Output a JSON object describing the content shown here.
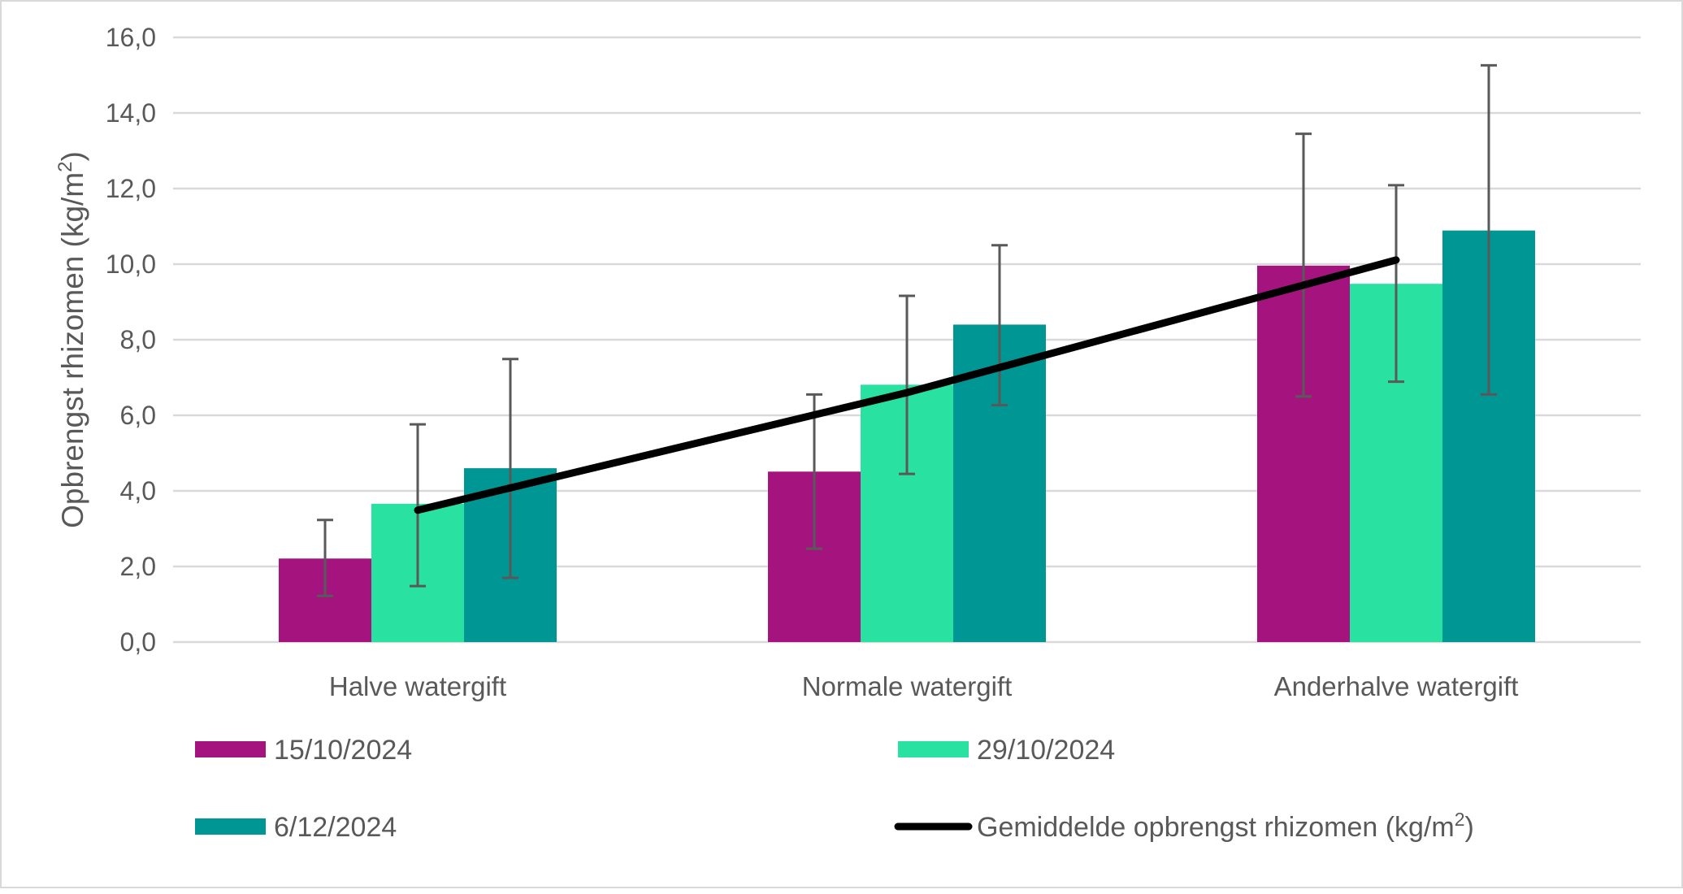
{
  "chart_data": {
    "type": "bar",
    "title": "",
    "xlabel": "",
    "ylabel": "Opbrengst rhizomen (kg/m²)",
    "ylabel_main": "Opbrengst rhizomen (kg/m",
    "ylabel_sup": "2",
    "ylabel_end": ")",
    "ylim": [
      0,
      16
    ],
    "yticks": [
      0,
      2,
      4,
      6,
      8,
      10,
      12,
      14,
      16
    ],
    "ytick_labels": [
      "0,0",
      "2,0",
      "4,0",
      "6,0",
      "8,0",
      "10,0",
      "12,0",
      "14,0",
      "16,0"
    ],
    "grid": true,
    "legend_position": "bottom",
    "categories": [
      "Halve watergift",
      "Normale watergift",
      "Anderhalve watergift"
    ],
    "series": [
      {
        "name": "15/10/2024",
        "type": "bar",
        "color": "#A5147E",
        "values": [
          2.21,
          4.51,
          9.96
        ],
        "error_low": [
          1.22,
          2.47,
          6.5
        ],
        "error_high": [
          3.23,
          6.55,
          13.45
        ]
      },
      {
        "name": "29/10/2024",
        "type": "bar",
        "color": "#29E2A2",
        "values": [
          3.66,
          6.81,
          9.48
        ],
        "error_low": [
          1.48,
          4.45,
          6.89
        ],
        "error_high": [
          5.76,
          9.16,
          12.09
        ]
      },
      {
        "name": "6/12/2024",
        "type": "bar",
        "color": "#009694",
        "values": [
          4.6,
          8.4,
          10.89
        ],
        "error_low": [
          1.7,
          6.27,
          6.55
        ],
        "error_high": [
          7.49,
          10.5,
          15.26
        ]
      },
      {
        "name": "Gemiddelde opbrengst rhizomen (kg/m²)",
        "legend_main": "Gemiddelde opbrengst rhizomen (kg/m",
        "legend_sup": "2",
        "legend_end": ")",
        "type": "line",
        "color": "#000000",
        "values": [
          3.49,
          6.6,
          10.11
        ]
      }
    ]
  }
}
